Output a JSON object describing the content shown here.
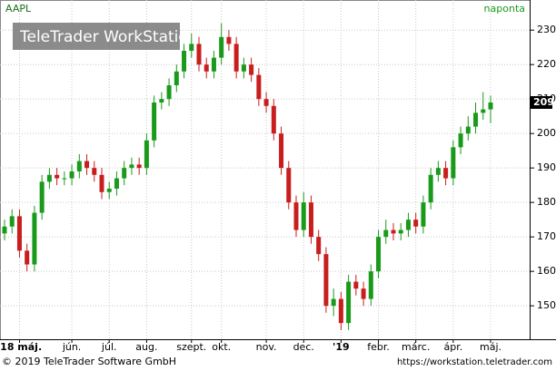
{
  "chart_data": {
    "type": "candlestick",
    "symbol": "AAPL",
    "interval": "naponta",
    "watermark": "TeleTrader WorkStation",
    "footer_left": "© 2019 TeleTrader Software GmbH",
    "footer_right": "https://workstation.teletrader.com",
    "up_color": "#1a9a1a",
    "down_color": "#c81e1e",
    "grid": true,
    "categories": [
      null,
      null,
      "'18 máj.",
      null,
      null,
      null,
      null,
      null,
      null,
      "jún.",
      null,
      null,
      null,
      null,
      "júl.",
      null,
      null,
      null,
      null,
      "aug.",
      null,
      null,
      null,
      null,
      null,
      "szept.",
      null,
      null,
      null,
      "okt.",
      null,
      null,
      null,
      null,
      null,
      "nov.",
      null,
      null,
      null,
      null,
      "dec.",
      null,
      null,
      null,
      null,
      "'19",
      null,
      null,
      null,
      null,
      "febr.",
      null,
      null,
      null,
      null,
      "márc.",
      null,
      null,
      null,
      null,
      "ápr.",
      null,
      null,
      null,
      null,
      "máj."
    ],
    "open": [
      171,
      173,
      176,
      166,
      162,
      177,
      186,
      188,
      187,
      187,
      189,
      192,
      190,
      188,
      183,
      184,
      187,
      190,
      191,
      190,
      198,
      209,
      210,
      214,
      218,
      224,
      226,
      220,
      218,
      222,
      228,
      226,
      218,
      220,
      217,
      210,
      208,
      200,
      190,
      180,
      172,
      180,
      170,
      165,
      150,
      152,
      145,
      157,
      155,
      152,
      160,
      170,
      172,
      171,
      172,
      175,
      173,
      180,
      188,
      190,
      187,
      196,
      200,
      202,
      206,
      207
    ],
    "high": [
      175,
      178,
      178,
      168,
      179,
      188,
      190,
      190,
      189,
      191,
      194,
      194,
      192,
      190,
      186,
      189,
      192,
      193,
      193,
      200,
      211,
      212,
      216,
      220,
      226,
      229,
      228,
      222,
      224,
      232,
      230,
      228,
      222,
      222,
      219,
      212,
      210,
      202,
      192,
      182,
      183,
      182,
      172,
      167,
      155,
      154,
      159,
      159,
      157,
      162,
      172,
      175,
      174,
      174,
      177,
      177,
      182,
      190,
      192,
      192,
      198,
      202,
      205,
      209,
      212,
      211
    ],
    "low": [
      169,
      171,
      164,
      160,
      160,
      175,
      184,
      185,
      185,
      185,
      187,
      188,
      186,
      181,
      181,
      182,
      185,
      188,
      188,
      188,
      196,
      207,
      208,
      212,
      216,
      222,
      218,
      216,
      216,
      220,
      224,
      216,
      216,
      215,
      208,
      206,
      198,
      188,
      178,
      170,
      170,
      168,
      163,
      148,
      147,
      143,
      143,
      153,
      150,
      150,
      158,
      168,
      169,
      169,
      170,
      171,
      171,
      178,
      186,
      185,
      185,
      194,
      198,
      200,
      204,
      203
    ],
    "close": [
      173,
      176,
      166,
      162,
      177,
      186,
      188,
      187,
      187,
      189,
      192,
      190,
      188,
      183,
      184,
      187,
      190,
      191,
      190,
      198,
      209,
      210,
      214,
      218,
      224,
      226,
      220,
      218,
      222,
      228,
      226,
      218,
      220,
      217,
      210,
      208,
      200,
      190,
      180,
      172,
      180,
      170,
      165,
      150,
      152,
      145,
      157,
      155,
      152,
      160,
      170,
      172,
      171,
      172,
      175,
      173,
      180,
      188,
      190,
      187,
      196,
      200,
      202,
      206,
      207,
      209
    ],
    "ylim": [
      140.3,
      234
    ],
    "yticks": [
      150,
      160,
      170,
      180,
      190,
      200,
      210,
      220,
      230
    ]
  }
}
